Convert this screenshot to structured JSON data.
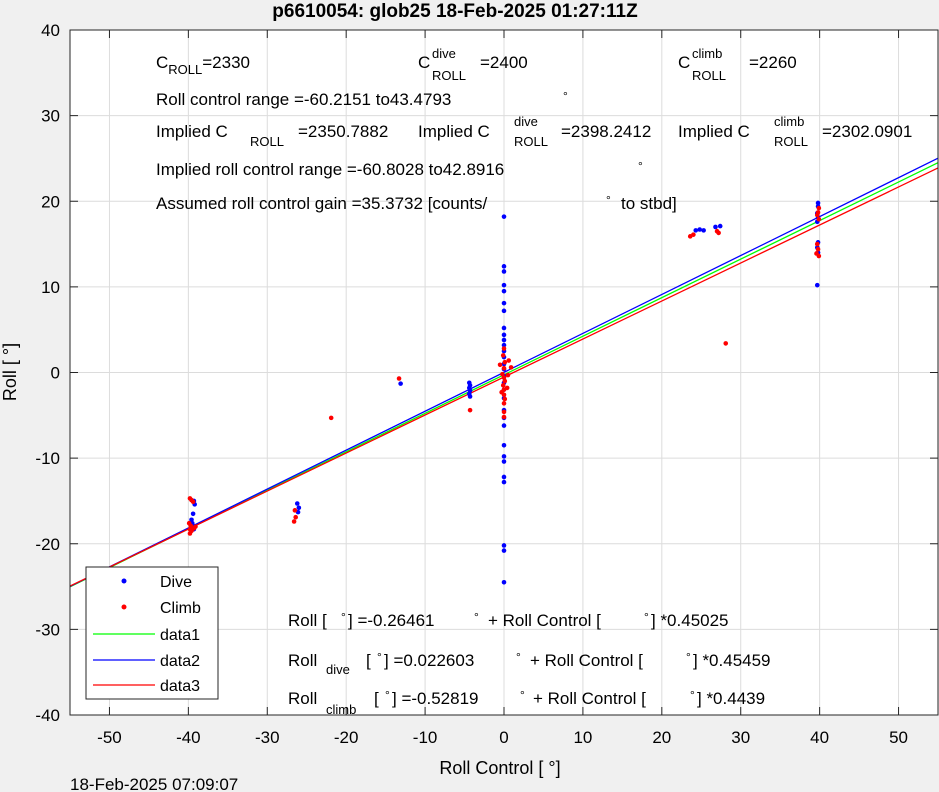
{
  "title": "p6610054: glob25 18-Feb-2025 01:27:11Z",
  "footer_timestamp": "18-Feb-2025 07:09:07",
  "chart_data": {
    "type": "scatter",
    "xlabel": "Roll Control [   °]",
    "ylabel": "Roll [  °]",
    "xlim": [
      -55,
      55
    ],
    "ylim": [
      -40,
      40
    ],
    "xticks": [
      -50,
      -40,
      -30,
      -20,
      -10,
      0,
      10,
      20,
      30,
      40,
      50
    ],
    "yticks": [
      -40,
      -30,
      -20,
      -10,
      0,
      10,
      20,
      30,
      40
    ],
    "grid": true,
    "legend_position": "bottom-left",
    "series": [
      {
        "name": "Dive",
        "type": "scatter",
        "color": "#0000ff",
        "points": [
          [
            -39.6,
            -17.2
          ],
          [
            -39.5,
            -17.6
          ],
          [
            -39.4,
            -17.9
          ],
          [
            -39.3,
            -15.0
          ],
          [
            -39.2,
            -15.4
          ],
          [
            -39.4,
            -16.5
          ],
          [
            -39.5,
            -18.0
          ],
          [
            -39.3,
            -18.3
          ],
          [
            -26.2,
            -15.3
          ],
          [
            -26.0,
            -15.8
          ],
          [
            -26.1,
            -16.3
          ],
          [
            -13.1,
            -1.3
          ],
          [
            -4.4,
            -1.2
          ],
          [
            -4.3,
            -1.5
          ],
          [
            -4.4,
            -1.8
          ],
          [
            -4.3,
            -2.1
          ],
          [
            -4.4,
            -2.5
          ],
          [
            -4.3,
            -2.8
          ],
          [
            0.0,
            18.2
          ],
          [
            0.0,
            12.4
          ],
          [
            0.0,
            11.8
          ],
          [
            0.0,
            10.2
          ],
          [
            0.0,
            9.5
          ],
          [
            0.0,
            8.1
          ],
          [
            0.0,
            7.2
          ],
          [
            0.0,
            5.2
          ],
          [
            0.0,
            4.4
          ],
          [
            0.0,
            3.8
          ],
          [
            0.0,
            3.2
          ],
          [
            0.0,
            2.5
          ],
          [
            0.0,
            1.8
          ],
          [
            0.0,
            1.0
          ],
          [
            0.0,
            0.4
          ],
          [
            0.0,
            -0.4
          ],
          [
            0.0,
            -1.2
          ],
          [
            0.0,
            -2.0
          ],
          [
            0.0,
            -3.0
          ],
          [
            0.0,
            -4.4
          ],
          [
            0.0,
            -5.3
          ],
          [
            0.0,
            -6.2
          ],
          [
            0.0,
            -8.5
          ],
          [
            0.0,
            -9.8
          ],
          [
            0.0,
            -10.4
          ],
          [
            0.0,
            -12.2
          ],
          [
            0.0,
            -12.8
          ],
          [
            0.0,
            -20.2
          ],
          [
            0.0,
            -20.8
          ],
          [
            0.0,
            -24.5
          ],
          [
            24.3,
            16.6
          ],
          [
            24.8,
            16.7
          ],
          [
            25.3,
            16.6
          ],
          [
            26.8,
            17.0
          ],
          [
            27.4,
            17.1
          ],
          [
            39.8,
            19.8
          ],
          [
            39.8,
            19.4
          ],
          [
            39.7,
            18.6
          ],
          [
            39.8,
            18.1
          ],
          [
            39.7,
            17.6
          ],
          [
            39.8,
            15.2
          ],
          [
            39.7,
            14.6
          ],
          [
            39.8,
            14.0
          ],
          [
            39.7,
            10.2
          ]
        ]
      },
      {
        "name": "Climb",
        "type": "scatter",
        "color": "#ff0000",
        "points": [
          [
            -39.8,
            -14.7
          ],
          [
            -39.6,
            -14.9
          ],
          [
            -39.4,
            -15.1
          ],
          [
            -39.9,
            -17.6
          ],
          [
            -39.7,
            -17.9
          ],
          [
            -39.8,
            -18.3
          ],
          [
            -39.6,
            -18.5
          ],
          [
            -39.8,
            -18.8
          ],
          [
            -39.1,
            -18.0
          ],
          [
            -39.3,
            -18.2
          ],
          [
            -26.5,
            -16.1
          ],
          [
            -26.4,
            -16.9
          ],
          [
            -26.6,
            -17.4
          ],
          [
            -21.9,
            -5.3
          ],
          [
            -13.3,
            -0.7
          ],
          [
            -4.3,
            -4.4
          ],
          [
            -0.2,
            -0.2
          ],
          [
            0.0,
            0.5
          ],
          [
            0.1,
            1.2
          ],
          [
            -0.1,
            2.0
          ],
          [
            0.0,
            2.8
          ],
          [
            0.0,
            -0.6
          ],
          [
            0.1,
            -1.0
          ],
          [
            -0.1,
            -1.5
          ],
          [
            0.0,
            -2.0
          ],
          [
            0.0,
            -2.6
          ],
          [
            0.1,
            -3.1
          ],
          [
            0.0,
            -3.6
          ],
          [
            0.0,
            -4.6
          ],
          [
            0.0,
            -5.2
          ],
          [
            0.5,
            -0.3
          ],
          [
            0.9,
            0.6
          ],
          [
            -0.5,
            0.9
          ],
          [
            0.6,
            1.4
          ],
          [
            -0.3,
            -2.3
          ],
          [
            0.4,
            -1.8
          ],
          [
            23.6,
            15.9
          ],
          [
            24.0,
            16.1
          ],
          [
            27.0,
            16.5
          ],
          [
            27.2,
            16.3
          ],
          [
            28.1,
            3.4
          ],
          [
            39.9,
            19.2
          ],
          [
            39.8,
            18.7
          ],
          [
            39.7,
            18.4
          ],
          [
            39.9,
            17.9
          ],
          [
            39.7,
            15.0
          ],
          [
            39.8,
            14.4
          ],
          [
            39.6,
            13.9
          ],
          [
            39.9,
            13.6
          ]
        ]
      },
      {
        "name": "data1",
        "type": "line",
        "color": "#00ff00",
        "slope": 0.45025,
        "intercept": -0.26461
      },
      {
        "name": "data2",
        "type": "line",
        "color": "#0000ff",
        "slope": 0.45459,
        "intercept": 0.022603
      },
      {
        "name": "data3",
        "type": "line",
        "color": "#ff0000",
        "slope": 0.4439,
        "intercept": -0.52819
      }
    ]
  },
  "annotations": {
    "c_roll": {
      "c": "C",
      "sub": "ROLL",
      "val": "=2330"
    },
    "c_roll_dive": {
      "c": "C",
      "sup": "dive",
      "sub": "ROLL",
      "val": "=2400"
    },
    "c_roll_climb": {
      "c": "C",
      "sup": "climb",
      "sub": "ROLL",
      "val": "=2260"
    },
    "roll_control_range": "Roll control range =-60.2151 to43.4793",
    "implied1": {
      "a": "Implied C",
      "sub": "ROLL",
      "val": "=2350.7882"
    },
    "implied2": {
      "a": "Implied C",
      "sup": "dive",
      "sub": "ROLL",
      "val": "=2398.2412"
    },
    "implied3": {
      "a": "Implied C",
      "sup": "climb",
      "sub": "ROLL",
      "val": "=2302.0901"
    },
    "implied_range": "Implied roll control range =-60.8028 to42.8916",
    "gain_a": "Assumed roll control gain =35.3732 [counts/",
    "gain_b": "to stbd]",
    "fit_all": {
      "a": "Roll [",
      "b": "] =-0.26461",
      "c": "+ Roll Control [",
      "d": "] *0.45025"
    },
    "fit_dive": {
      "a": "Roll",
      "sub": "dive",
      "b": "[",
      "c": "] =0.022603",
      "d": "+ Roll Control [",
      "e": "] *0.45459"
    },
    "fit_climb": {
      "a": "Roll",
      "sub": "climb",
      "b": "[",
      "c": "] =-0.52819",
      "d": "+ Roll Control [",
      "e": "] *0.4439"
    }
  }
}
